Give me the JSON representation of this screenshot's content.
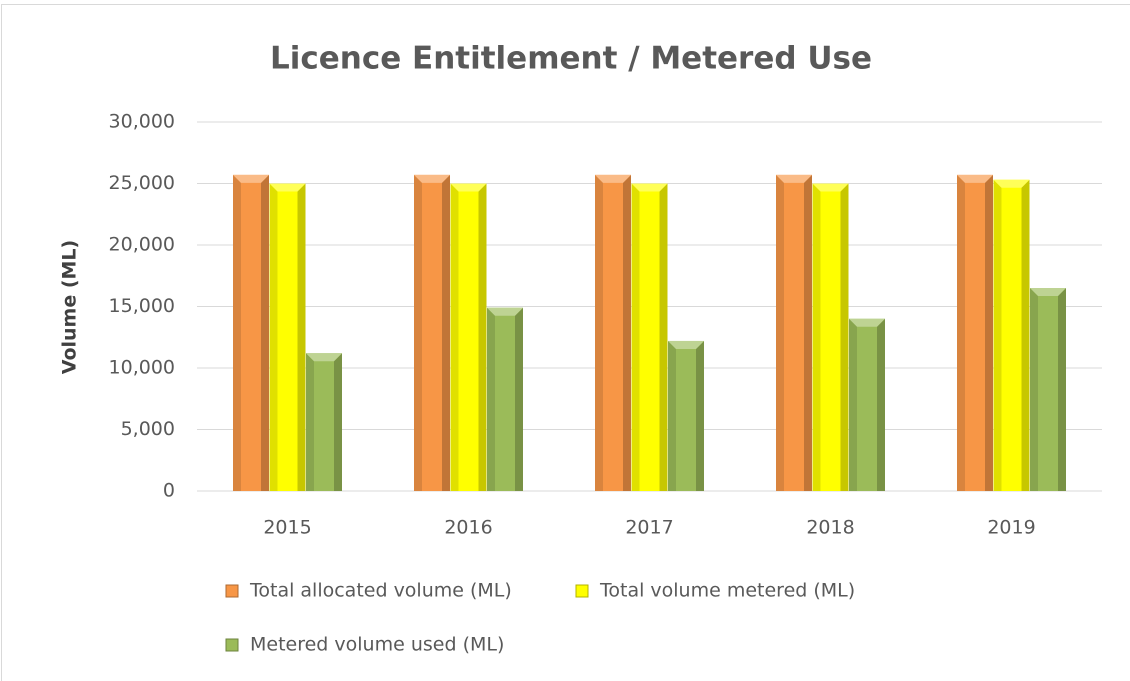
{
  "chart_data": {
    "type": "bar",
    "title": "Licence Entitlement / Metered Use",
    "y_label": "Volume (ML)",
    "categories": [
      "2015",
      "2016",
      "2017",
      "2018",
      "2019"
    ],
    "series": [
      {
        "name": "Total allocated volume (ML)",
        "color": "#f79646",
        "values": [
          25700,
          25700,
          25700,
          25700,
          25700
        ]
      },
      {
        "name": "Total volume metered (ML)",
        "color": "#ffff00",
        "values": [
          25000,
          25000,
          25000,
          25000,
          25300
        ]
      },
      {
        "name": "Metered volume used (ML)",
        "color": "#9bbb59",
        "values": [
          11200,
          14900,
          12200,
          14000,
          16500
        ]
      }
    ],
    "ylim": [
      0,
      30000
    ],
    "yticks": [
      0,
      {
        "value": 5000,
        "label": "5,000"
      },
      {
        "value": 10000,
        "label": "10,000"
      },
      {
        "value": 15000,
        "label": "15,000"
      },
      {
        "value": 20000,
        "label": "20,000"
      },
      {
        "value": 25000,
        "label": "25,000"
      },
      {
        "value": 30000,
        "label": "30,000"
      }
    ],
    "grid": true,
    "legend": "bottom"
  }
}
